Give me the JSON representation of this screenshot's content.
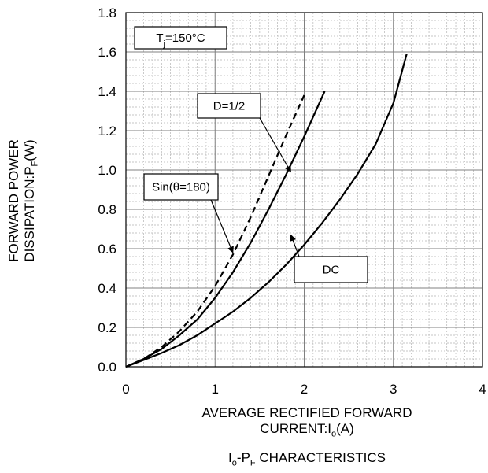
{
  "chart_data": {
    "type": "line",
    "title": "Io-PF CHARACTERISTICS",
    "title_parts": {
      "a": "I",
      "a_sub": "o",
      "b": "-P",
      "b_sub": "F",
      "c": " CHARACTERISTICS"
    },
    "xlabel": "AVERAGE RECTIFIED FORWARD CURRENT:Io(A)",
    "xlabel_parts": {
      "line1": "AVERAGE RECTIFIED FORWARD",
      "line2": "CURRENT:I",
      "sub": "o",
      "tail": "(A)"
    },
    "ylabel": "FORWARD POWER DISSIPATION:PF(W)",
    "ylabel_parts": {
      "line1": "FORWARD POWER",
      "line2": "DISSIPATION:P",
      "sub": "F",
      "tail": "(W)"
    },
    "xlim": [
      0,
      4
    ],
    "ylim": [
      0,
      1.8
    ],
    "x_ticks": [
      "0",
      "1",
      "2",
      "3",
      "4"
    ],
    "y_ticks": [
      "0.0",
      "0.2",
      "0.4",
      "0.6",
      "0.8",
      "1.0",
      "1.2",
      "1.4",
      "1.6",
      "1.8"
    ],
    "grid": true,
    "series": [
      {
        "name": "D=1/2",
        "style": "dashed",
        "x": [
          0,
          0.2,
          0.4,
          0.6,
          0.8,
          1.0,
          1.2,
          1.4,
          1.6,
          1.8,
          2.0
        ],
        "y": [
          0,
          0.04,
          0.1,
          0.18,
          0.28,
          0.41,
          0.57,
          0.76,
          0.97,
          1.18,
          1.38
        ]
      },
      {
        "name": "Sin(θ=180)",
        "style": "solid",
        "x": [
          0,
          0.2,
          0.4,
          0.6,
          0.8,
          1.0,
          1.2,
          1.4,
          1.6,
          1.8,
          2.0,
          2.23
        ],
        "y": [
          0,
          0.04,
          0.09,
          0.16,
          0.24,
          0.35,
          0.48,
          0.63,
          0.8,
          0.98,
          1.17,
          1.4
        ]
      },
      {
        "name": "DC",
        "style": "solid",
        "x": [
          0,
          0.2,
          0.4,
          0.6,
          0.8,
          1.0,
          1.2,
          1.4,
          1.6,
          1.8,
          2.0,
          2.2,
          2.4,
          2.6,
          2.8,
          3.0,
          3.15
        ],
        "y": [
          0,
          0.035,
          0.07,
          0.11,
          0.16,
          0.22,
          0.28,
          0.35,
          0.43,
          0.52,
          0.62,
          0.73,
          0.85,
          0.98,
          1.13,
          1.34,
          1.59
        ]
      }
    ],
    "annotations": [
      {
        "label": "T",
        "label_sub": "j",
        "label_tail": "=150°C"
      },
      {
        "label": "D=1/2",
        "target": {
          "x": 1.85,
          "y": 0.99
        }
      },
      {
        "label": "Sin(θ=180)",
        "target": {
          "x": 1.2,
          "y": 0.58
        }
      },
      {
        "label": "DC",
        "target": {
          "x": 1.85,
          "y": 0.67
        }
      }
    ]
  }
}
